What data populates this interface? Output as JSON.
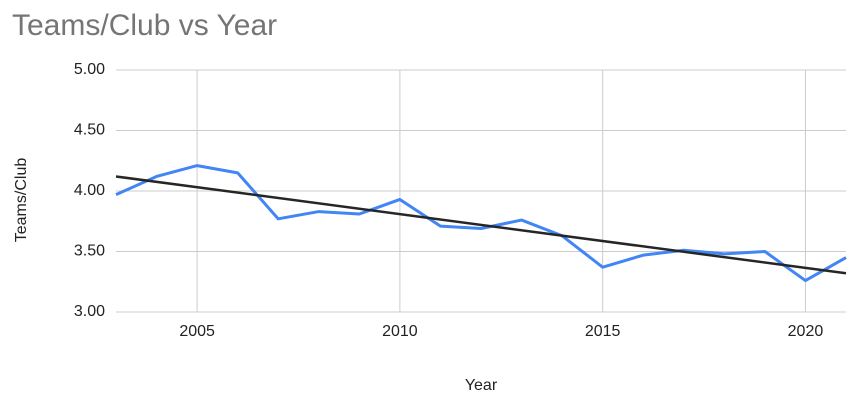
{
  "chart_data": {
    "type": "line",
    "title": "Teams/Club vs Year",
    "x_label": "Year",
    "y_label": "Teams/Club",
    "x": [
      2003,
      2004,
      2005,
      2006,
      2007,
      2008,
      2009,
      2010,
      2011,
      2012,
      2013,
      2014,
      2015,
      2016,
      2017,
      2018,
      2019,
      2020,
      2021
    ],
    "series": [
      {
        "color": "#4285f4",
        "values": [
          3.97,
          4.12,
          4.21,
          4.15,
          3.77,
          3.83,
          3.81,
          3.93,
          3.71,
          3.69,
          3.76,
          3.63,
          3.37,
          3.47,
          3.51,
          3.48,
          3.5,
          3.26,
          3.45
        ]
      }
    ],
    "trendline": {
      "color": "#262626",
      "x": [
        2003,
        2021
      ],
      "values": [
        4.12,
        3.32
      ]
    },
    "xlim": [
      2003,
      2021
    ],
    "xticks": [
      2005,
      2010,
      2015,
      2020
    ],
    "ylim": [
      3,
      5
    ],
    "yticks": [
      {
        "value": 3,
        "label": "3.00"
      },
      {
        "value": 3.5,
        "label": "3.50"
      },
      {
        "value": 4,
        "label": "4.00"
      },
      {
        "value": 4.5,
        "label": "4.50"
      },
      {
        "value": 5,
        "label": "5.00"
      }
    ],
    "grid": true
  }
}
